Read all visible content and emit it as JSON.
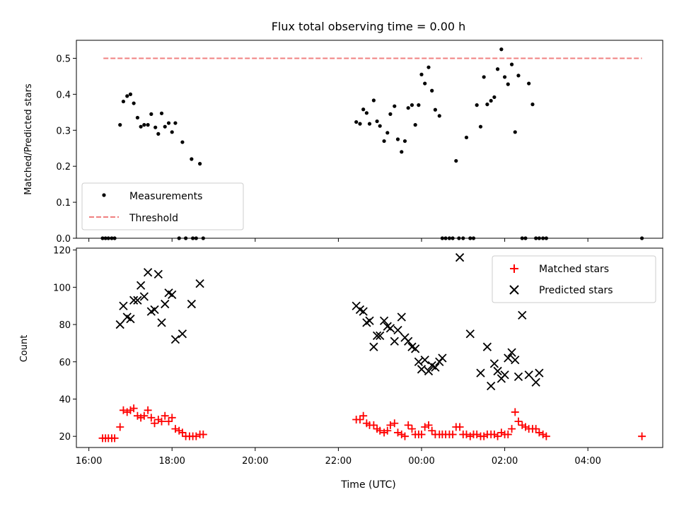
{
  "chart_data": [
    {
      "type": "scatter",
      "title": "Flux total observing time = 0.00 h",
      "ylabel": "Matched/Predicted stars",
      "xlabel": "",
      "xlim": [
        15.7,
        29.8
      ],
      "ylim": [
        0,
        0.55
      ],
      "yticks": [
        0.0,
        0.1,
        0.2,
        0.3,
        0.4,
        0.5
      ],
      "ytick_labels": [
        "0.0",
        "0.1",
        "0.2",
        "0.3",
        "0.4",
        "0.5"
      ],
      "legend": {
        "placement": "lower-left",
        "entries": [
          "Measurements",
          "Threshold"
        ]
      },
      "colors": {
        "measurements": "#000000",
        "threshold": "#f08080"
      },
      "threshold": {
        "name": "Threshold",
        "y": 0.5,
        "x_range": [
          16.35,
          29.3
        ]
      },
      "series": [
        {
          "name": "Measurements",
          "x": [
            16.33,
            16.4,
            16.47,
            16.55,
            16.62,
            16.75,
            16.83,
            16.92,
            17.0,
            17.08,
            17.17,
            17.25,
            17.33,
            17.42,
            17.5,
            17.6,
            17.67,
            17.75,
            17.83,
            17.92,
            18.0,
            18.08,
            18.25,
            18.47,
            18.67,
            18.17,
            18.33,
            18.5,
            18.58,
            18.75,
            22.43,
            22.52,
            22.6,
            22.68,
            22.75,
            22.85,
            22.93,
            23.0,
            23.1,
            23.18,
            23.25,
            23.35,
            23.43,
            23.52,
            23.6,
            23.68,
            23.77,
            23.85,
            23.93,
            24.0,
            24.08,
            24.17,
            24.25,
            24.33,
            24.43,
            24.5,
            24.58,
            24.67,
            24.75,
            24.83,
            24.9,
            25.0,
            25.08,
            25.17,
            25.25,
            25.33,
            25.42,
            25.5,
            25.58,
            25.67,
            25.75,
            25.83,
            25.92,
            26.0,
            26.08,
            26.17,
            26.25,
            26.33,
            26.42,
            26.5,
            26.58,
            26.67,
            26.75,
            26.83,
            26.92,
            27.0,
            29.3
          ],
          "y": [
            0,
            0,
            0,
            0,
            0,
            0.315,
            0.38,
            0.395,
            0.4,
            0.375,
            0.335,
            0.31,
            0.315,
            0.315,
            0.345,
            0.308,
            0.29,
            0.347,
            0.31,
            0.32,
            0.295,
            0.32,
            0.267,
            0.22,
            0.207,
            0,
            0,
            0,
            0,
            0,
            0.323,
            0.318,
            0.358,
            0.348,
            0.318,
            0.383,
            0.325,
            0.312,
            0.27,
            0.293,
            0.345,
            0.367,
            0.275,
            0.24,
            0.27,
            0.362,
            0.37,
            0.315,
            0.37,
            0.455,
            0.43,
            0.475,
            0.41,
            0.357,
            0.34,
            0,
            0,
            0,
            0,
            0.215,
            0,
            0,
            0.28,
            0,
            0,
            0.37,
            0.31,
            0.448,
            0.372,
            0.382,
            0.392,
            0.47,
            0.525,
            0.448,
            0.428,
            0.483,
            0.295,
            0.452,
            0,
            0,
            0.43,
            0.372,
            0,
            0,
            0,
            0,
            0
          ]
        }
      ]
    },
    {
      "type": "scatter",
      "title": "",
      "ylabel": "Count",
      "xlabel": "Time (UTC)",
      "xlim": [
        15.7,
        29.8
      ],
      "ylim": [
        14,
        121
      ],
      "yticks": [
        20,
        40,
        60,
        80,
        100,
        120
      ],
      "ytick_labels": [
        "20",
        "40",
        "60",
        "80",
        "100",
        "120"
      ],
      "xticks": [
        16,
        18,
        20,
        22,
        24,
        26,
        28
      ],
      "xtick_labels": [
        "16:00",
        "18:00",
        "20:00",
        "22:00",
        "00:00",
        "02:00",
        "04:00"
      ],
      "legend": {
        "placement": "upper-right",
        "entries": [
          "Matched stars",
          "Predicted stars"
        ]
      },
      "colors": {
        "matched": "#ff0000",
        "predicted": "#000000"
      },
      "series": [
        {
          "name": "Matched stars",
          "x": [
            16.33,
            16.4,
            16.47,
            16.55,
            16.62,
            16.75,
            16.83,
            16.92,
            17.0,
            17.08,
            17.17,
            17.25,
            17.33,
            17.42,
            17.5,
            17.58,
            17.67,
            17.75,
            17.83,
            17.92,
            18.0,
            18.08,
            18.17,
            18.25,
            18.33,
            18.42,
            18.5,
            18.58,
            18.67,
            18.75,
            22.43,
            22.52,
            22.6,
            22.68,
            22.75,
            22.85,
            22.93,
            23.0,
            23.1,
            23.18,
            23.25,
            23.35,
            23.43,
            23.52,
            23.6,
            23.68,
            23.77,
            23.85,
            23.93,
            24.0,
            24.08,
            24.17,
            24.25,
            24.33,
            24.43,
            24.5,
            24.58,
            24.67,
            24.75,
            24.83,
            24.92,
            25.0,
            25.08,
            25.17,
            25.25,
            25.33,
            25.42,
            25.5,
            25.58,
            25.67,
            25.75,
            25.83,
            25.92,
            26.0,
            26.08,
            26.17,
            26.25,
            26.33,
            26.42,
            26.5,
            26.58,
            26.67,
            26.75,
            26.83,
            26.92,
            27.0,
            29.3
          ],
          "y": [
            19,
            19,
            19,
            19,
            19,
            25,
            34,
            33,
            34,
            35,
            31,
            30,
            31,
            34,
            30,
            27,
            29,
            28,
            31,
            28,
            30,
            24,
            23,
            22,
            20,
            20,
            20,
            20,
            21,
            21,
            29,
            29,
            31,
            27,
            26,
            26,
            24,
            23,
            22,
            23,
            26,
            27,
            22,
            21,
            20,
            26,
            24,
            21,
            21,
            21,
            25,
            26,
            23,
            21,
            21,
            21,
            21,
            21,
            21,
            25,
            25,
            21,
            21,
            20,
            21,
            21,
            20,
            20,
            21,
            21,
            21,
            20,
            22,
            21,
            21,
            24,
            33,
            28,
            26,
            25,
            24,
            24,
            24,
            22,
            21,
            20,
            20
          ]
        },
        {
          "name": "Predicted stars",
          "x": [
            16.75,
            16.83,
            16.92,
            17.0,
            17.08,
            17.17,
            17.25,
            17.33,
            17.42,
            17.5,
            17.58,
            17.67,
            17.75,
            17.83,
            17.92,
            18.0,
            18.08,
            18.25,
            18.47,
            18.67,
            22.43,
            22.52,
            22.6,
            22.68,
            22.75,
            22.85,
            22.93,
            23.0,
            23.1,
            23.18,
            23.25,
            23.35,
            23.43,
            23.52,
            23.6,
            23.68,
            23.77,
            23.85,
            23.93,
            24.0,
            24.08,
            24.17,
            24.25,
            24.33,
            24.43,
            24.5,
            24.92,
            25.17,
            25.42,
            25.58,
            25.67,
            25.75,
            25.83,
            25.92,
            26.0,
            26.08,
            26.17,
            26.25,
            26.33,
            26.42,
            26.58,
            26.75,
            26.83
          ],
          "y": [
            80,
            90,
            84,
            83,
            93,
            93,
            101,
            95,
            108,
            87,
            88,
            107,
            81,
            91,
            97,
            96,
            72,
            75,
            91,
            102,
            90,
            88,
            87,
            81,
            82,
            68,
            74,
            74,
            82,
            79,
            78,
            71,
            77,
            84,
            73,
            71,
            68,
            67,
            60,
            56,
            61,
            55,
            58,
            57,
            60,
            62,
            116,
            75,
            54,
            68,
            47,
            59,
            55,
            51,
            53,
            62,
            65,
            61,
            52,
            85,
            53,
            49,
            54
          ]
        }
      ]
    }
  ]
}
